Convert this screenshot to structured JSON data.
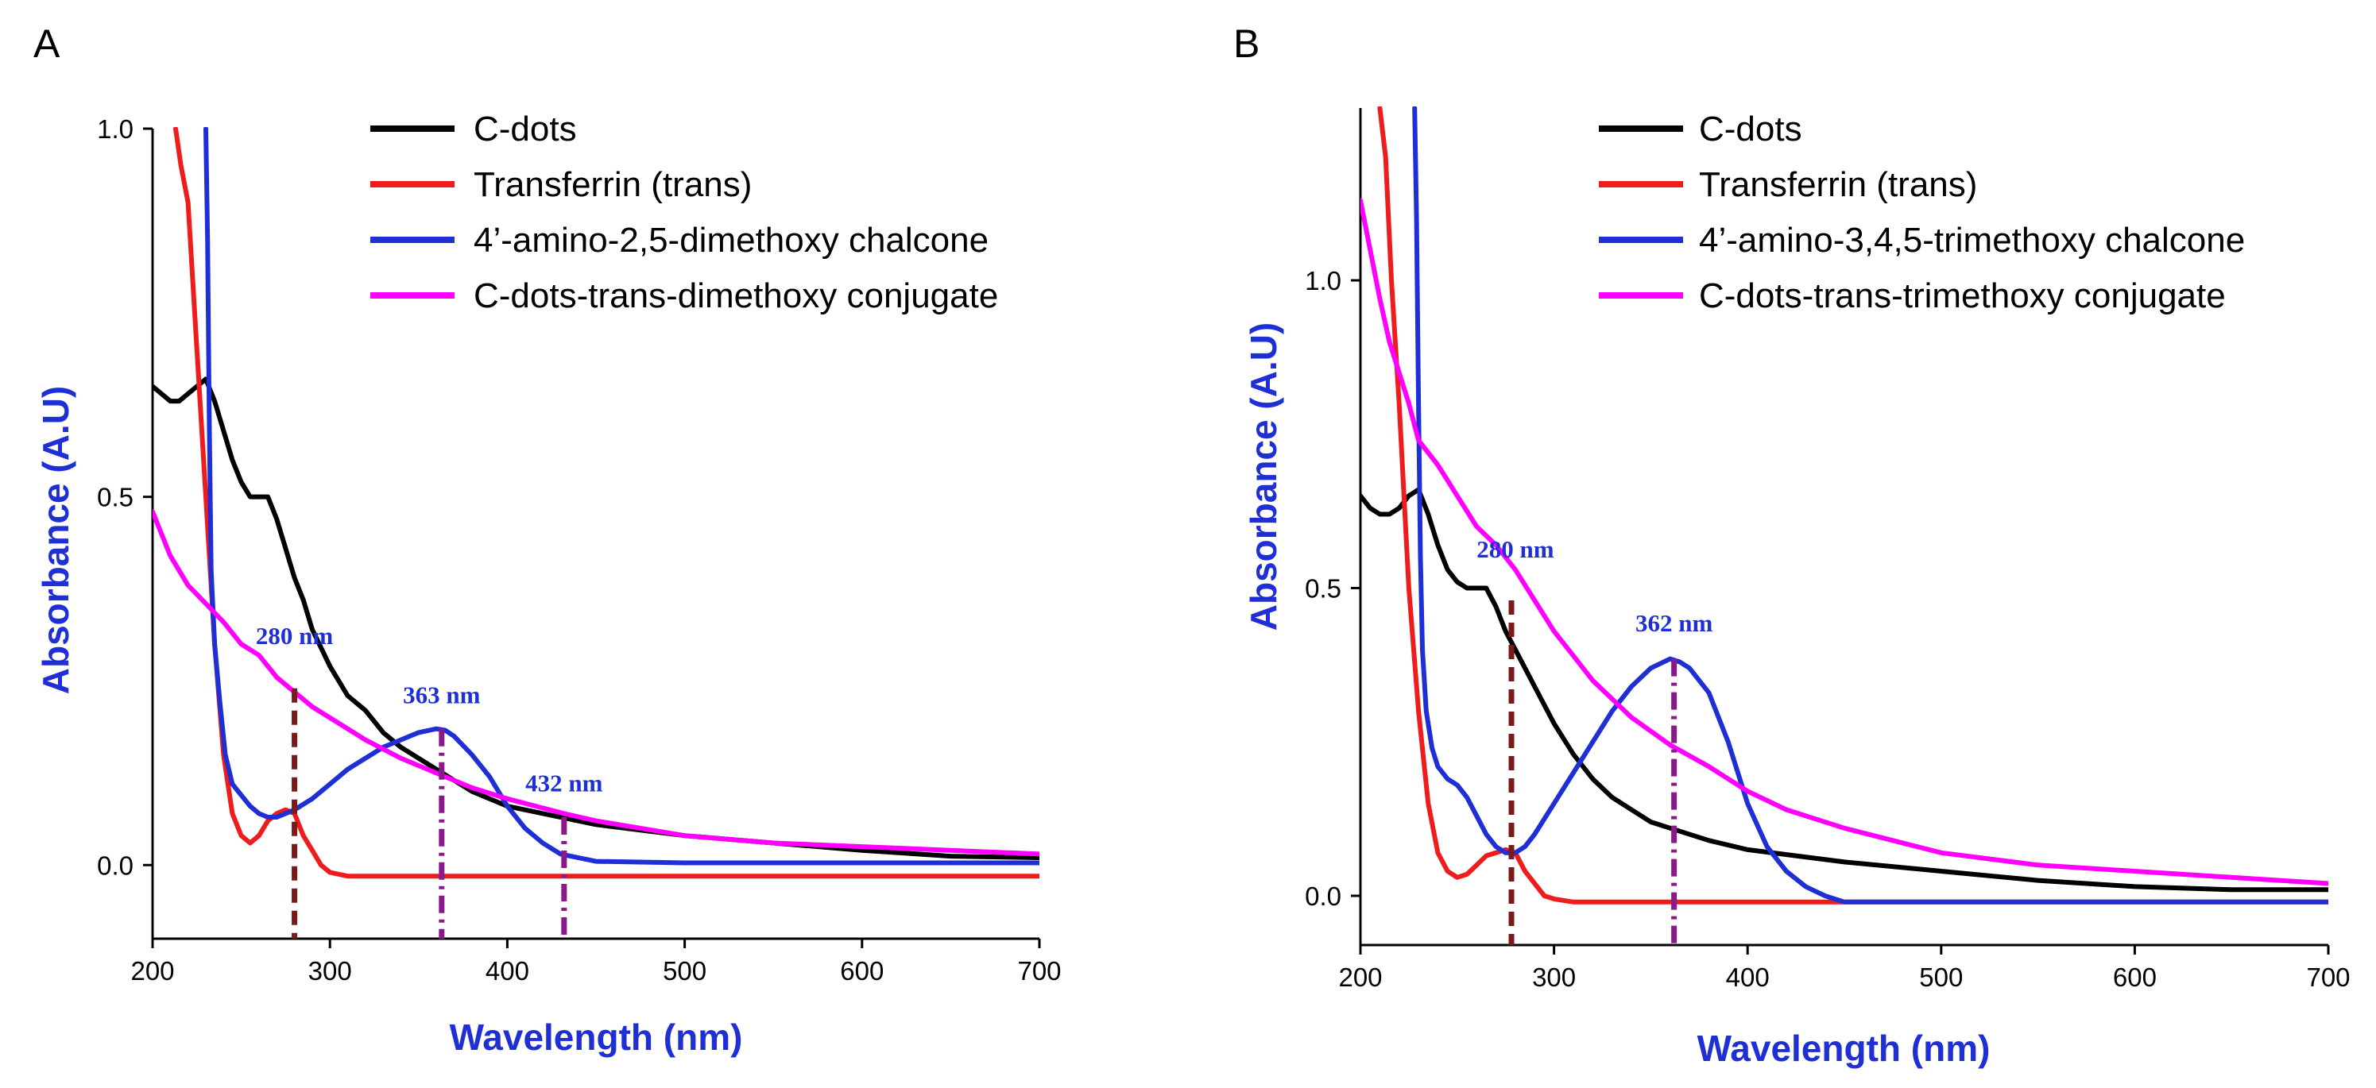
{
  "chart_data": [
    {
      "panel": "A",
      "type": "line",
      "xlabel": "Wavelength (nm)",
      "ylabel": "Absorbance (A.U)",
      "xlim": [
        200,
        700
      ],
      "ylim": [
        -0.1,
        1.0
      ],
      "xticks": [
        200,
        300,
        400,
        500,
        600,
        700
      ],
      "yticks": [
        0.0,
        0.5,
        1.0
      ],
      "xtick_labels": [
        "200",
        "300",
        "400",
        "500",
        "600",
        "700"
      ],
      "ytick_labels": [
        "0.0",
        "0.5",
        "1.0"
      ],
      "legend_position": "top-right",
      "colors": {
        "black": "#000000",
        "red": "#ee1c1c",
        "blue": "#1f2fd6",
        "magenta": "#ff00ff",
        "dashed_marker": "#7a1a1a",
        "dashdot_marker": "#8a1a8a",
        "axis_title": "#1f2fd6"
      },
      "series": [
        {
          "name": "C-dots",
          "color": "#000000",
          "x": [
            200,
            205,
            210,
            215,
            220,
            225,
            230,
            235,
            240,
            245,
            250,
            255,
            260,
            265,
            270,
            275,
            280,
            285,
            290,
            300,
            310,
            320,
            330,
            340,
            350,
            360,
            380,
            400,
            450,
            500,
            550,
            600,
            650,
            700
          ],
          "y": [
            0.65,
            0.64,
            0.63,
            0.63,
            0.64,
            0.65,
            0.66,
            0.63,
            0.59,
            0.55,
            0.52,
            0.5,
            0.5,
            0.5,
            0.47,
            0.43,
            0.39,
            0.36,
            0.32,
            0.27,
            0.23,
            0.21,
            0.18,
            0.16,
            0.145,
            0.13,
            0.1,
            0.08,
            0.055,
            0.04,
            0.03,
            0.02,
            0.012,
            0.01
          ]
        },
        {
          "name": "Transferrin (trans)",
          "color": "#ee1c1c",
          "x": [
            213,
            216,
            220,
            225,
            230,
            235,
            240,
            245,
            250,
            255,
            260,
            265,
            270,
            275,
            280,
            285,
            290,
            295,
            300,
            310,
            320,
            350,
            400,
            450,
            500,
            550,
            600,
            650,
            700
          ],
          "y": [
            1.0,
            0.95,
            0.9,
            0.7,
            0.5,
            0.3,
            0.15,
            0.07,
            0.04,
            0.03,
            0.04,
            0.06,
            0.07,
            0.075,
            0.07,
            0.04,
            0.02,
            0.0,
            -0.01,
            -0.015,
            -0.015,
            -0.015,
            -0.015,
            -0.015,
            -0.015,
            -0.015,
            -0.015,
            -0.015,
            -0.015
          ]
        },
        {
          "name": "4’-amino-2,5-dimethoxy chalcone",
          "color": "#1f2fd6",
          "x": [
            230,
            231,
            232,
            233,
            235,
            238,
            241,
            245,
            250,
            255,
            260,
            265,
            270,
            275,
            280,
            290,
            300,
            310,
            320,
            330,
            340,
            350,
            360,
            365,
            370,
            380,
            390,
            400,
            410,
            420,
            430,
            450,
            500,
            600,
            700
          ],
          "y": [
            1.0,
            0.85,
            0.6,
            0.4,
            0.3,
            0.22,
            0.15,
            0.11,
            0.095,
            0.08,
            0.07,
            0.065,
            0.065,
            0.07,
            0.075,
            0.09,
            0.11,
            0.13,
            0.145,
            0.16,
            0.17,
            0.18,
            0.185,
            0.183,
            0.175,
            0.15,
            0.12,
            0.08,
            0.05,
            0.03,
            0.015,
            0.005,
            0.003,
            0.003,
            0.003
          ]
        },
        {
          "name": "C-dots-trans-dimethoxy conjugate",
          "color": "#ff00ff",
          "x": [
            200,
            210,
            220,
            230,
            240,
            250,
            260,
            270,
            280,
            290,
            300,
            320,
            340,
            360,
            380,
            400,
            432,
            450,
            500,
            550,
            600,
            650,
            700
          ],
          "y": [
            0.48,
            0.42,
            0.38,
            0.355,
            0.33,
            0.3,
            0.285,
            0.255,
            0.235,
            0.215,
            0.2,
            0.17,
            0.145,
            0.125,
            0.105,
            0.09,
            0.07,
            0.06,
            0.04,
            0.03,
            0.025,
            0.02,
            0.015
          ]
        }
      ],
      "markers": [
        {
          "x": 280,
          "y_top": 0.24,
          "style": "dashed",
          "color": "#7a1a1a"
        },
        {
          "x": 363,
          "y_top": 0.185,
          "style": "dashdot",
          "color": "#8a1a8a"
        },
        {
          "x": 432,
          "y_top": 0.065,
          "style": "dashdot",
          "color": "#8a1a8a"
        }
      ],
      "annotations": [
        {
          "text": "280 nm",
          "x": 280,
          "y": 0.3
        },
        {
          "text": "363 nm",
          "x": 363,
          "y": 0.22
        },
        {
          "text": "432 nm",
          "x": 432,
          "y": 0.1
        }
      ]
    },
    {
      "panel": "B",
      "type": "line",
      "xlabel": "Wavelength (nm)",
      "ylabel": "Absorbance (A.U)",
      "xlim": [
        200,
        700
      ],
      "ylim": [
        -0.08,
        1.28
      ],
      "xticks": [
        200,
        300,
        400,
        500,
        600,
        700
      ],
      "yticks": [
        0.0,
        0.5,
        1.0
      ],
      "xtick_labels": [
        "200",
        "300",
        "400",
        "500",
        "600",
        "700"
      ],
      "ytick_labels": [
        "0.0",
        "0.5",
        "1.0"
      ],
      "legend_position": "top-right",
      "colors": {
        "black": "#000000",
        "red": "#ee1c1c",
        "blue": "#1f2fd6",
        "magenta": "#ff00ff",
        "dashed_marker": "#7a1a1a",
        "dashdot_marker": "#8a1a8a",
        "axis_title": "#1f2fd6"
      },
      "series": [
        {
          "name": "C-dots",
          "color": "#000000",
          "x": [
            200,
            205,
            210,
            215,
            220,
            225,
            230,
            235,
            240,
            245,
            250,
            255,
            260,
            265,
            270,
            275,
            280,
            285,
            290,
            300,
            310,
            320,
            330,
            340,
            350,
            360,
            380,
            400,
            450,
            500,
            550,
            600,
            650,
            700
          ],
          "y": [
            0.65,
            0.63,
            0.62,
            0.62,
            0.63,
            0.65,
            0.66,
            0.62,
            0.57,
            0.53,
            0.51,
            0.5,
            0.5,
            0.5,
            0.47,
            0.43,
            0.4,
            0.37,
            0.34,
            0.28,
            0.23,
            0.19,
            0.16,
            0.14,
            0.12,
            0.11,
            0.09,
            0.075,
            0.055,
            0.04,
            0.025,
            0.015,
            0.01,
            0.01
          ]
        },
        {
          "name": "Transferrin (trans)",
          "color": "#ee1c1c",
          "x": [
            210,
            213,
            216,
            220,
            225,
            230,
            235,
            240,
            245,
            250,
            255,
            260,
            265,
            270,
            275,
            280,
            285,
            290,
            295,
            300,
            310,
            320,
            350,
            400,
            450,
            500,
            550,
            600,
            650,
            700
          ],
          "y": [
            1.28,
            1.2,
            1.0,
            0.8,
            0.5,
            0.3,
            0.15,
            0.07,
            0.04,
            0.03,
            0.035,
            0.05,
            0.065,
            0.07,
            0.075,
            0.07,
            0.04,
            0.02,
            0.0,
            -0.005,
            -0.01,
            -0.01,
            -0.01,
            -0.01,
            -0.01,
            -0.01,
            -0.01,
            -0.01,
            -0.01,
            -0.01
          ]
        },
        {
          "name": "4’-amino-3,4,5-trimethoxy chalcone",
          "color": "#1f2fd6",
          "x": [
            228,
            229,
            230,
            231,
            232,
            234,
            237,
            240,
            245,
            250,
            255,
            260,
            265,
            270,
            275,
            280,
            285,
            290,
            300,
            310,
            320,
            330,
            340,
            350,
            360,
            365,
            370,
            380,
            390,
            400,
            410,
            420,
            430,
            440,
            450,
            460,
            500,
            600,
            700
          ],
          "y": [
            1.28,
            1.1,
            0.8,
            0.55,
            0.4,
            0.3,
            0.24,
            0.21,
            0.19,
            0.18,
            0.16,
            0.13,
            0.1,
            0.08,
            0.07,
            0.07,
            0.08,
            0.1,
            0.15,
            0.2,
            0.25,
            0.3,
            0.34,
            0.37,
            0.385,
            0.38,
            0.37,
            0.33,
            0.25,
            0.15,
            0.08,
            0.04,
            0.015,
            0.0,
            -0.01,
            -0.01,
            -0.01,
            -0.01,
            -0.01
          ]
        },
        {
          "name": "C-dots-trans-trimethoxy conjugate",
          "color": "#ff00ff",
          "x": [
            200,
            205,
            210,
            215,
            220,
            225,
            230,
            240,
            250,
            260,
            270,
            280,
            290,
            300,
            310,
            320,
            340,
            360,
            380,
            400,
            420,
            450,
            500,
            550,
            600,
            650,
            700
          ],
          "y": [
            1.13,
            1.05,
            0.97,
            0.9,
            0.85,
            0.8,
            0.74,
            0.7,
            0.65,
            0.6,
            0.57,
            0.53,
            0.48,
            0.43,
            0.39,
            0.35,
            0.29,
            0.245,
            0.21,
            0.17,
            0.14,
            0.11,
            0.07,
            0.05,
            0.04,
            0.03,
            0.02
          ]
        }
      ],
      "markers": [
        {
          "x": 278,
          "y_top": 0.48,
          "style": "dashed",
          "color": "#7a1a1a"
        },
        {
          "x": 362,
          "y_top": 0.385,
          "style": "dashdot",
          "color": "#8a1a8a"
        }
      ],
      "annotations": [
        {
          "text": "280 nm",
          "x": 280,
          "y": 0.55
        },
        {
          "text": "362 nm",
          "x": 362,
          "y": 0.43
        }
      ]
    }
  ]
}
